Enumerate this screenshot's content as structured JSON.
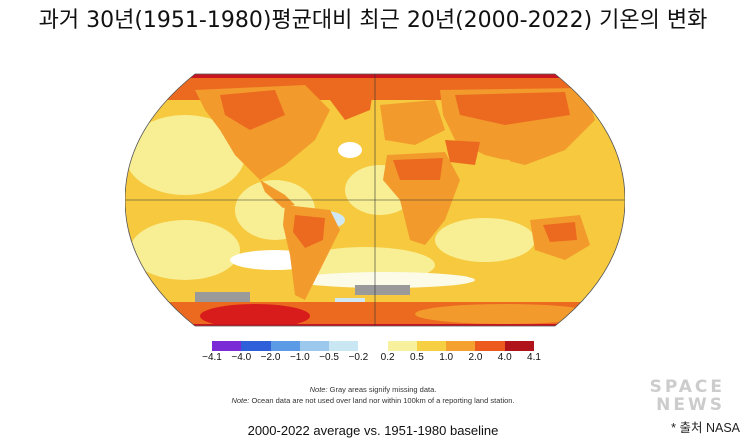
{
  "title": "과거 30년(1951-1980)평균대비 최근 20년(2000-2022) 기온의 변화",
  "legend": {
    "ticks": [
      "−4.1",
      "−4.0",
      "−2.0",
      "−1.0",
      "−0.5",
      "−0.2",
      "0.2",
      "0.5",
      "1.0",
      "2.0",
      "4.0",
      "4.1"
    ],
    "colors": [
      "#7b2bd6",
      "#2f5fd9",
      "#5b9be6",
      "#9cc8ee",
      "#c9e6f3",
      "#ffffff",
      "#f7f19e",
      "#f6cf43",
      "#f4a12f",
      "#ec5b1d",
      "#b0141a"
    ]
  },
  "notes": {
    "line1_label": "Note:",
    "line1_text": " Gray areas signify missing data.",
    "line2_label": "Note:",
    "line2_text": " Ocean data are not used over land nor within 100km of a reporting land station."
  },
  "caption": "2000-2022 average vs. 1951-1980 baseline",
  "source": "* 출처 NASA",
  "watermark": {
    "line1": "SPACE",
    "line2": "NEWS"
  },
  "map_colors": {
    "warm_light": "#f8ee93",
    "warm_mid": "#f6c93f",
    "warm_orange": "#f29b2c",
    "warm_dark": "#ec6a1f",
    "hot_red": "#d81c1c",
    "cool_light": "#cfe8f4",
    "missing": "#9a9a9a"
  }
}
